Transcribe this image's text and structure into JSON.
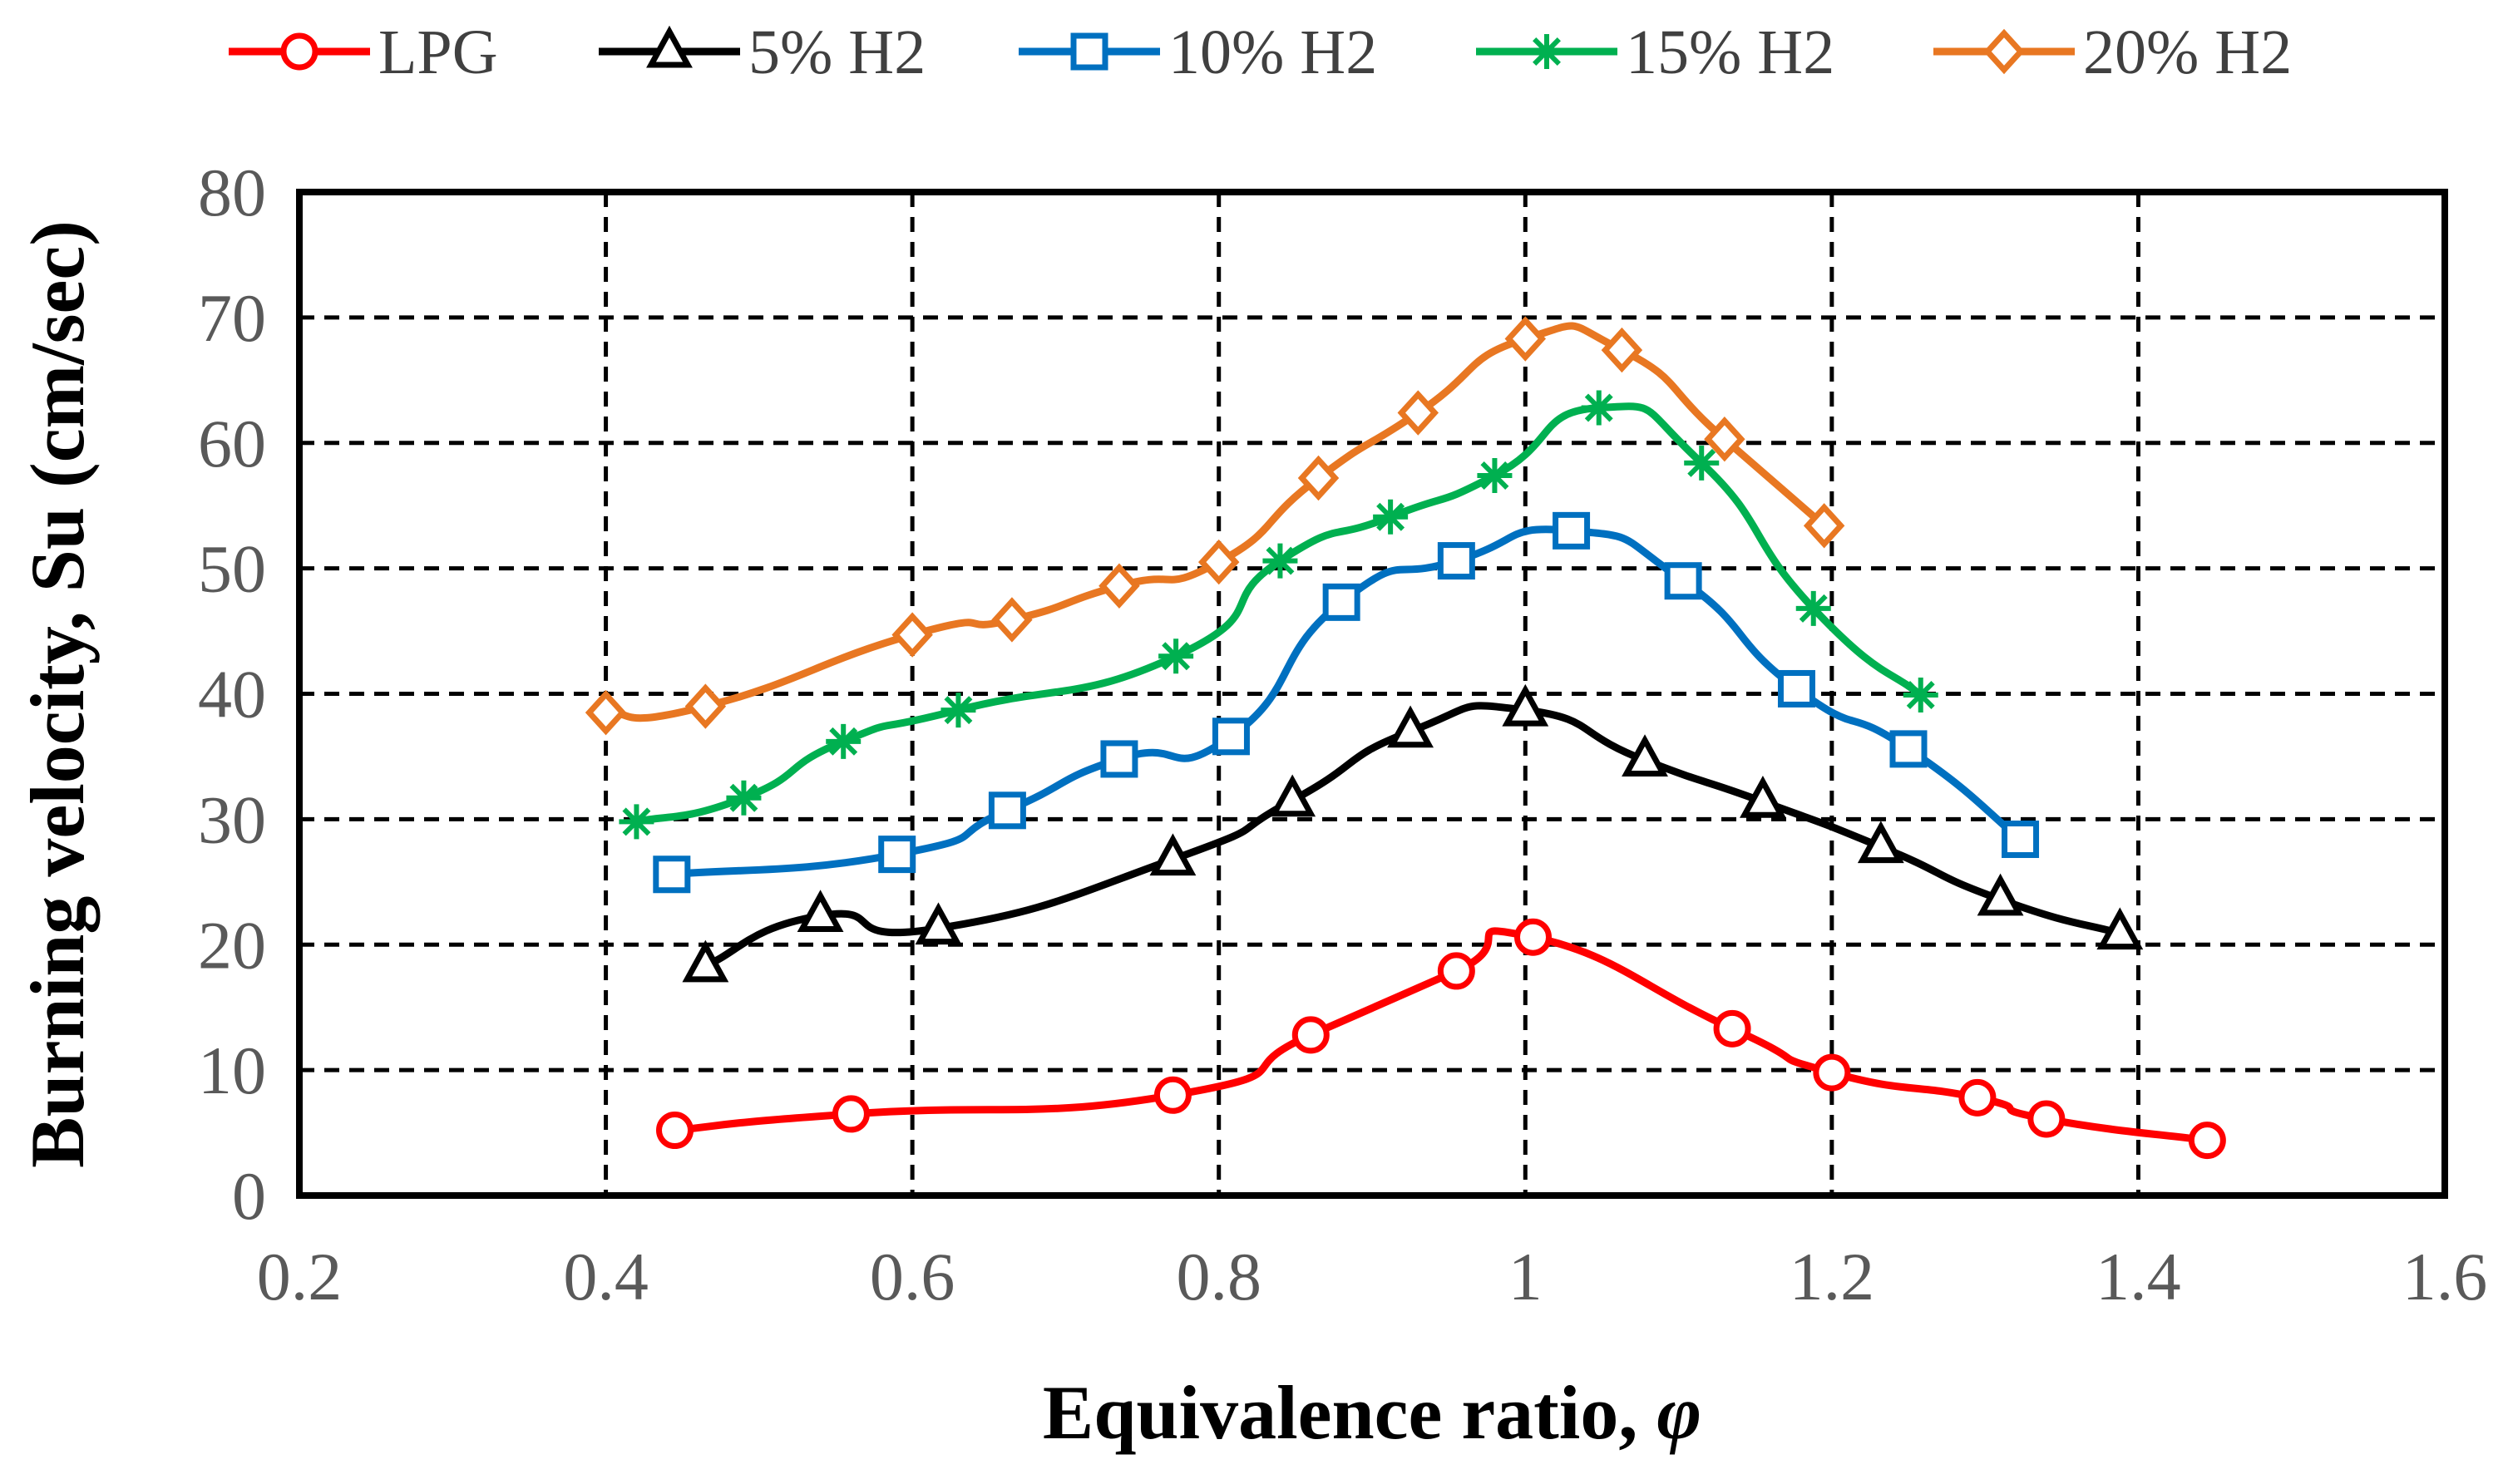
{
  "chart_data": {
    "type": "line",
    "title": "",
    "xlabel": "Equivalence ratio, ",
    "xlabel_symbol": "φ",
    "ylabel": "Burning velocity, Su (cm/sec)",
    "xlim": [
      0.2,
      1.6
    ],
    "ylim": [
      0,
      80
    ],
    "xticks": [
      0.2,
      0.4,
      0.6,
      0.8,
      1,
      1.2,
      1.4,
      1.6
    ],
    "xtick_labels": [
      "0.2",
      "0.4",
      "0.6",
      "0.8",
      "1",
      "1.2",
      "1.4",
      "1.6"
    ],
    "yticks": [
      0,
      10,
      20,
      30,
      40,
      50,
      60,
      70,
      80
    ],
    "ytick_labels": [
      "0",
      "10",
      "20",
      "30",
      "40",
      "50",
      "60",
      "70",
      "80"
    ],
    "grid": true,
    "legend_position": "top",
    "series": [
      {
        "name": "LPG",
        "color": "#FF0000",
        "marker": "circle",
        "x": [
          0.445,
          0.56,
          0.77,
          0.86,
          0.955,
          1.005,
          1.135,
          1.2,
          1.295,
          1.34,
          1.445
        ],
        "y": [
          5.2,
          6.5,
          8.0,
          12.8,
          17.9,
          20.6,
          13.3,
          9.8,
          7.8,
          6.1,
          4.4
        ]
      },
      {
        "name": "5% H2",
        "color": "#000000",
        "marker": "triangle",
        "x": [
          0.465,
          0.54,
          0.617,
          0.77,
          0.848,
          0.925,
          1.0,
          1.078,
          1.155,
          1.232,
          1.31,
          1.388
        ],
        "y": [
          18.3,
          22.3,
          21.3,
          26.8,
          31.5,
          37.0,
          38.7,
          34.7,
          31.4,
          27.8,
          23.6,
          20.9
        ]
      },
      {
        "name": "10% H2",
        "color": "#0070C0",
        "marker": "square",
        "x": [
          0.443,
          0.59,
          0.662,
          0.735,
          0.808,
          0.88,
          0.955,
          1.03,
          1.103,
          1.177,
          1.25,
          1.323
        ],
        "y": [
          25.6,
          27.2,
          30.7,
          34.8,
          36.6,
          47.3,
          50.6,
          53.0,
          49.0,
          40.4,
          35.6,
          28.4
        ]
      },
      {
        "name": "15% H2",
        "color": "#00B050",
        "marker": "star",
        "x": [
          0.42,
          0.49,
          0.555,
          0.63,
          0.772,
          0.84,
          0.912,
          0.98,
          1.048,
          1.115,
          1.188,
          1.258
        ],
        "y": [
          29.8,
          31.7,
          36.2,
          38.7,
          43.0,
          50.6,
          54.1,
          57.4,
          62.8,
          58.4,
          46.8,
          39.9
        ]
      },
      {
        "name": "20% H2",
        "color": "#E87722",
        "marker": "diamond",
        "x": [
          0.4,
          0.465,
          0.6,
          0.665,
          0.735,
          0.8,
          0.865,
          0.93,
          1.0,
          1.063,
          1.13,
          1.195
        ],
        "y": [
          38.5,
          39.0,
          44.7,
          45.9,
          48.6,
          50.5,
          57.2,
          62.4,
          68.3,
          67.4,
          60.3,
          53.4
        ]
      }
    ]
  }
}
